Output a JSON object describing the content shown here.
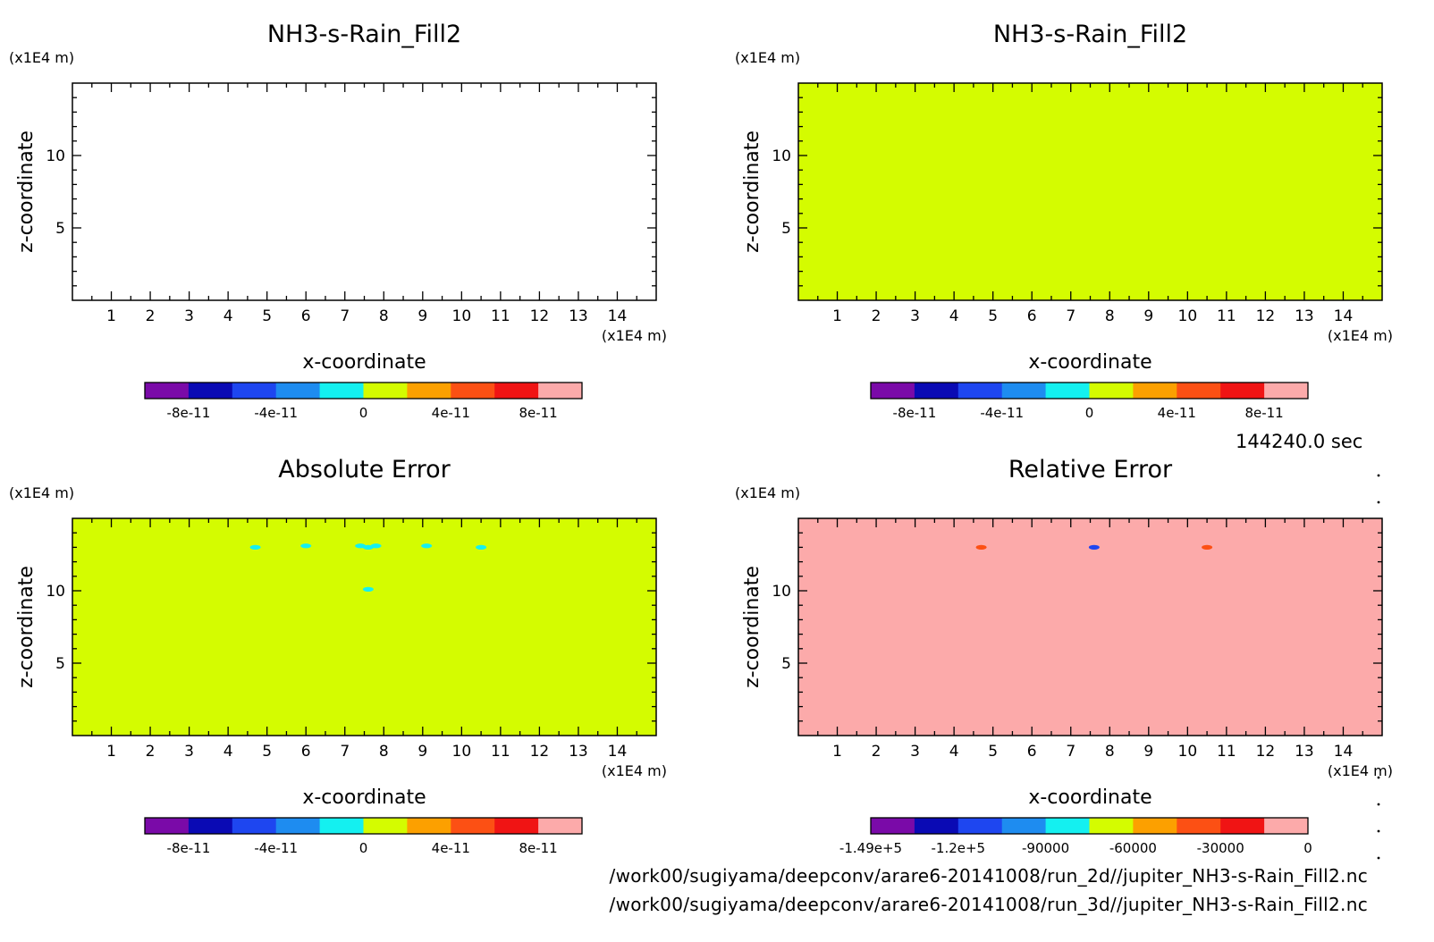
{
  "figure": {
    "timestamp": "144240.0 sec",
    "files": [
      "/work00/sugiyama/deepconv/arare6-20141008/run_2d//jupiter_NH3-s-Rain_Fill2.nc",
      "/work00/sugiyama/deepconv/arare6-20141008/run_3d//jupiter_NH3-s-Rain_Fill2.nc"
    ]
  },
  "colors": {
    "levels": [
      "#7a0aa8",
      "#0a0ab4",
      "#1e46f0",
      "#1e8cf0",
      "#14f0f0",
      "#d4fc00",
      "#fca000",
      "#fc5014",
      "#f01414",
      "#fcaaaa"
    ]
  },
  "chart_data": [
    {
      "type": "heatmap",
      "title": "NH3-s-Rain_Fill2",
      "xlabel": "x-coordinate",
      "ylabel": "z-coordinate",
      "x_unit": "(x1E4 m)",
      "y_unit": "(x1E4 m)",
      "xlim": [
        0,
        15
      ],
      "ylim": [
        0,
        15
      ],
      "x_ticks": [
        "1",
        "2",
        "3",
        "4",
        "5",
        "6",
        "7",
        "8",
        "9",
        "10",
        "11",
        "12",
        "13",
        "14"
      ],
      "y_ticks": [
        "5",
        "10"
      ],
      "fill": null,
      "colorbar_labels": [
        "-8e-11",
        "-4e-11",
        "0",
        "4e-11",
        "8e-11"
      ],
      "colorbar_range": [
        -1e-10,
        1e-10
      ],
      "features": []
    },
    {
      "type": "heatmap",
      "title": "NH3-s-Rain_Fill2",
      "xlabel": "x-coordinate",
      "ylabel": "z-coordinate",
      "x_unit": "(x1E4 m)",
      "y_unit": "(x1E4 m)",
      "xlim": [
        0,
        15
      ],
      "ylim": [
        0,
        15
      ],
      "x_ticks": [
        "1",
        "2",
        "3",
        "4",
        "5",
        "6",
        "7",
        "8",
        "9",
        "10",
        "11",
        "12",
        "13",
        "14"
      ],
      "y_ticks": [
        "5",
        "10"
      ],
      "fill": "#d4fc00",
      "colorbar_labels": [
        "-8e-11",
        "-4e-11",
        "0",
        "4e-11",
        "8e-11"
      ],
      "colorbar_range": [
        -1e-10,
        1e-10
      ],
      "features": []
    },
    {
      "type": "heatmap",
      "title": "Absolute Error",
      "xlabel": "x-coordinate",
      "ylabel": "z-coordinate",
      "x_unit": "(x1E4 m)",
      "y_unit": "(x1E4 m)",
      "xlim": [
        0,
        15
      ],
      "ylim": [
        0,
        15
      ],
      "x_ticks": [
        "1",
        "2",
        "3",
        "4",
        "5",
        "6",
        "7",
        "8",
        "9",
        "10",
        "11",
        "12",
        "13",
        "14"
      ],
      "y_ticks": [
        "5",
        "10"
      ],
      "fill": "#d4fc00",
      "colorbar_labels": [
        "-8e-11",
        "-4e-11",
        "0",
        "4e-11",
        "8e-11"
      ],
      "colorbar_range": [
        -1e-10,
        1e-10
      ],
      "features": [
        {
          "x": 4.7,
          "z": 13.0,
          "color": "#14f0f0"
        },
        {
          "x": 6.0,
          "z": 13.1,
          "color": "#14f0f0"
        },
        {
          "x": 7.4,
          "z": 13.1,
          "color": "#14f0f0"
        },
        {
          "x": 7.6,
          "z": 13.0,
          "color": "#14f0f0"
        },
        {
          "x": 7.8,
          "z": 13.1,
          "color": "#14f0f0"
        },
        {
          "x": 9.1,
          "z": 13.1,
          "color": "#14f0f0"
        },
        {
          "x": 10.5,
          "z": 13.0,
          "color": "#14f0f0"
        },
        {
          "x": 7.6,
          "z": 10.1,
          "color": "#14f0f0"
        }
      ]
    },
    {
      "type": "heatmap",
      "title": "Relative Error",
      "xlabel": "x-coordinate",
      "ylabel": "z-coordinate",
      "x_unit": "(x1E4 m)",
      "y_unit": "(x1E4 m)",
      "xlim": [
        0,
        15
      ],
      "ylim": [
        0,
        15
      ],
      "x_ticks": [
        "1",
        "2",
        "3",
        "4",
        "5",
        "6",
        "7",
        "8",
        "9",
        "10",
        "11",
        "12",
        "13",
        "14"
      ],
      "y_ticks": [
        "5",
        "10"
      ],
      "fill": "#fcaaaa",
      "colorbar_labels": [
        "-1.49e+5",
        "-1.2e+5",
        "-90000",
        "-60000",
        "-30000",
        "0"
      ],
      "colorbar_range": [
        -149000,
        0
      ],
      "features": [
        {
          "x": 4.7,
          "z": 13.0,
          "color": "#fc5014"
        },
        {
          "x": 7.6,
          "z": 13.0,
          "color": "#1e46f0"
        },
        {
          "x": 10.5,
          "z": 13.0,
          "color": "#fc5014"
        }
      ]
    }
  ]
}
